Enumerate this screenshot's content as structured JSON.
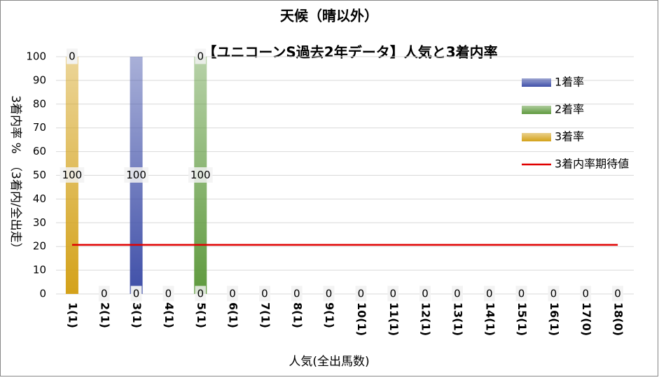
{
  "chart_data": {
    "type": "bar",
    "stacked": true,
    "title": "天候（晴以外）",
    "subtitle": "【ユニコーンS過去2年データ】人気と3着内率",
    "x_label": "人気(全出馬数)",
    "y_label": "3着内率 %　（3着内/全出走）",
    "categories": [
      "1(1)",
      "2(1)",
      "3(1)",
      "4(1)",
      "5(1)",
      "6(1)",
      "7(1)",
      "8(1)",
      "9(1)",
      "10(1)",
      "11(1)",
      "12(1)",
      "13(1)",
      "14(1)",
      "15(1)",
      "16(1)",
      "17(0)",
      "18(0)"
    ],
    "series": [
      {
        "name": "1着率",
        "color": "#3f4fa8",
        "values": [
          0,
          0,
          100,
          0,
          0,
          0,
          0,
          0,
          0,
          0,
          0,
          0,
          0,
          0,
          0,
          0,
          0,
          0
        ]
      },
      {
        "name": "2着率",
        "color": "#5f9a3e",
        "values": [
          0,
          0,
          0,
          0,
          100,
          0,
          0,
          0,
          0,
          0,
          0,
          0,
          0,
          0,
          0,
          0,
          0,
          0
        ]
      },
      {
        "name": "3着率",
        "color": "#d4a21a",
        "values": [
          100,
          0,
          0,
          0,
          0,
          0,
          0,
          0,
          0,
          0,
          0,
          0,
          0,
          0,
          0,
          0,
          0,
          0
        ]
      },
      {
        "name": "3着内率期待値",
        "type": "line",
        "color": "#e00000",
        "values": [
          20.7,
          20.7,
          20.7,
          20.7,
          20.7,
          20.7,
          20.7,
          20.7,
          20.7,
          20.7,
          20.7,
          20.7,
          20.7,
          20.7,
          20.7,
          20.7,
          20.7,
          20.7
        ]
      }
    ],
    "stack_order": [
      2,
      1,
      0
    ],
    "ylim": [
      0,
      100
    ],
    "yticks": [
      0,
      10,
      20,
      30,
      40,
      50,
      60,
      70,
      80,
      90,
      100
    ],
    "grid": true,
    "legend": "right"
  }
}
